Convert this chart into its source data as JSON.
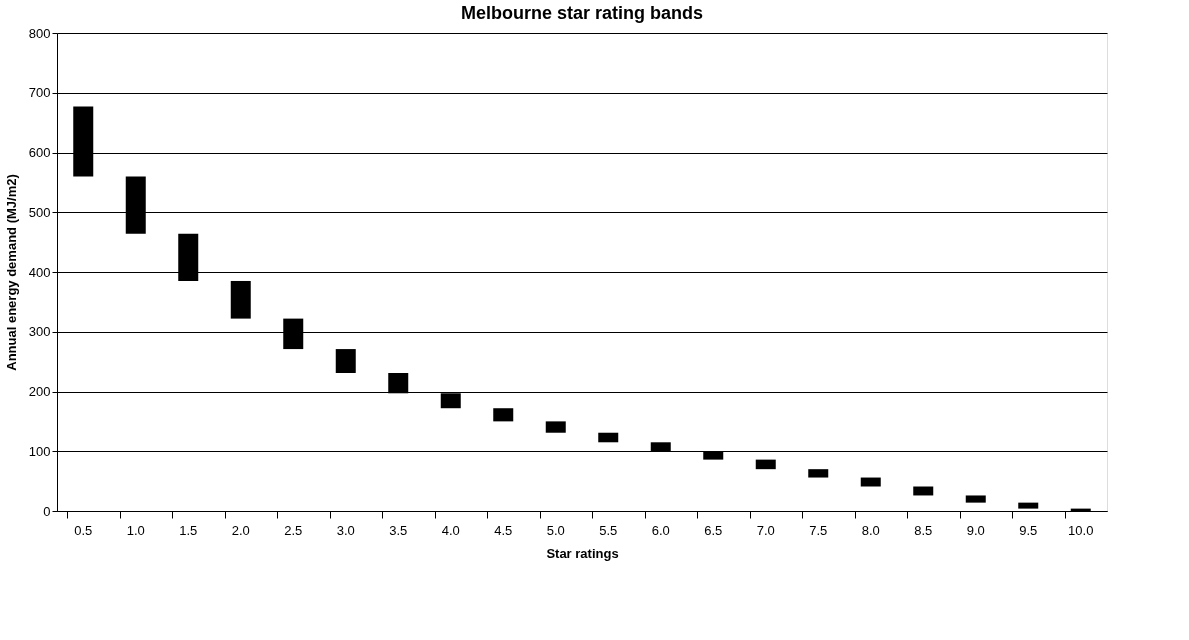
{
  "chart_data": {
    "type": "bar",
    "title": "Melbourne star rating bands",
    "xlabel": "Star ratings",
    "ylabel": "Annual energy demand (MJ/m2)",
    "categories": [
      "0.5",
      "1.0",
      "1.5",
      "2.0",
      "2.5",
      "3.0",
      "3.5",
      "4.0",
      "4.5",
      "5.0",
      "5.5",
      "6.0",
      "6.5",
      "7.0",
      "7.5",
      "8.0",
      "8.5",
      "9.0",
      "9.5",
      "10.0"
    ],
    "base": [
      560,
      464,
      385,
      322,
      271,
      231,
      197,
      172,
      150,
      131,
      115,
      100,
      86,
      70,
      56,
      41,
      26,
      14,
      4,
      0
    ],
    "values": [
      117,
      96,
      79,
      63,
      51,
      40,
      34,
      25,
      22,
      19,
      16,
      15,
      14,
      16,
      14,
      15,
      15,
      12,
      10,
      4
    ],
    "color": "#000000",
    "ylim": [
      0,
      800
    ],
    "yticks": [
      0,
      100,
      200,
      300,
      400,
      500,
      600,
      700,
      800
    ],
    "grid": "y"
  }
}
